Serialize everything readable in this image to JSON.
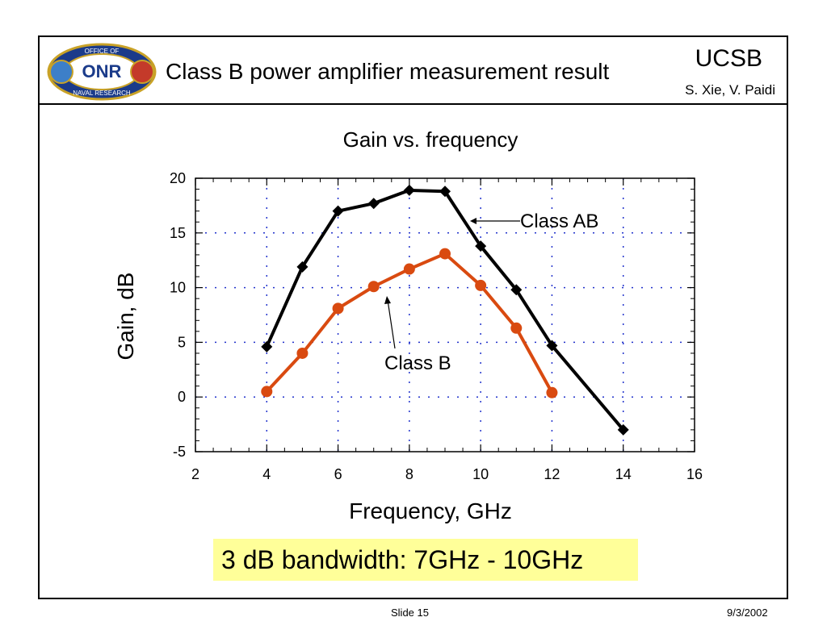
{
  "header": {
    "title": "Class B power amplifier measurement result",
    "org": "UCSB",
    "authors": "S. Xie, V. Paidi",
    "logo_text_top": "OFFICE OF",
    "logo_text_mid": "ONR",
    "logo_text_bottom": "NAVAL RESEARCH"
  },
  "footer": {
    "slide": "Slide 15",
    "date": "9/3/2002"
  },
  "note": "3 dB bandwidth: 7GHz - 10GHz",
  "colors": {
    "class_ab": "#000000",
    "class_b": "#d94a10",
    "highlight": "#ffff99",
    "grid": "#2233cc"
  },
  "chart_data": {
    "type": "line",
    "title": "Gain vs. frequency",
    "xlabel": "Frequency, GHz",
    "ylabel": "Gain, dB",
    "xlim": [
      2,
      16
    ],
    "ylim": [
      -5,
      20
    ],
    "xticks": [
      2,
      4,
      6,
      8,
      10,
      12,
      14,
      16
    ],
    "yticks": [
      -5,
      0,
      5,
      10,
      15,
      20
    ],
    "grid": true,
    "series": [
      {
        "name": "Class AB",
        "marker": "diamond",
        "x": [
          4,
          5,
          6,
          7,
          8,
          9,
          10,
          11,
          12,
          14
        ],
        "y": [
          4.6,
          11.9,
          17.0,
          17.7,
          18.9,
          18.8,
          13.8,
          9.8,
          4.7,
          -3.0
        ]
      },
      {
        "name": "Class B",
        "marker": "circle",
        "x": [
          4,
          5,
          6,
          7,
          8,
          9,
          10,
          11,
          12
        ],
        "y": [
          0.5,
          4.0,
          8.1,
          10.1,
          11.7,
          13.1,
          10.2,
          6.3,
          0.4
        ]
      }
    ]
  }
}
